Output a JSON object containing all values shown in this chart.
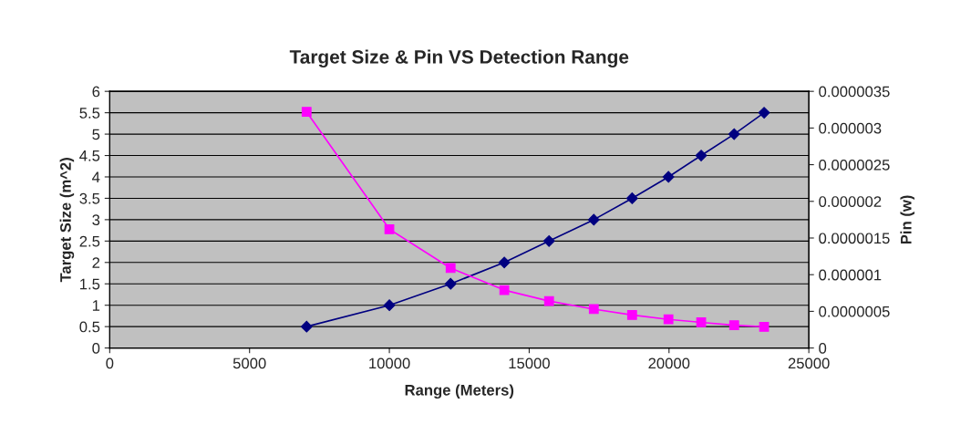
{
  "chart_data": {
    "type": "line",
    "title": "Target Size & Pin VS Detection Range",
    "xlabel": "Range (Meters)",
    "ylabel": "Target Size (m^2)",
    "y2label": "Pin (w)",
    "series": [
      {
        "color": "#000080",
        "marker": "diamond",
        "x": [
          7040,
          10000,
          12190,
          14110,
          15710,
          17310,
          18680,
          19980,
          21150,
          22330,
          23400
        ],
        "values": [
          0.5,
          1,
          1.5,
          2,
          2.5,
          3,
          3.5,
          4,
          4.5,
          5,
          5.5
        ]
      },
      {
        "color": "#ff00ff",
        "marker": "square",
        "axis": "y2",
        "x": [
          7040,
          10000,
          12190,
          14110,
          15710,
          17310,
          18680,
          19980,
          21150,
          22330,
          23400
        ],
        "values": [
          3.22e-06,
          1.62e-06,
          1.09e-06,
          7.9e-07,
          6.4e-07,
          5.3e-07,
          4.5e-07,
          3.9e-07,
          3.5e-07,
          3.1e-07,
          2.9e-07
        ]
      }
    ],
    "xlim": [
      0,
      25000
    ],
    "xticks": [
      0,
      5000,
      10000,
      15000,
      20000,
      25000
    ],
    "ylim": [
      0,
      6
    ],
    "yticks": [
      0,
      0.5,
      1,
      1.5,
      2,
      2.5,
      3,
      3.5,
      4,
      4.5,
      5,
      5.5,
      6
    ],
    "y2lim": [
      0,
      3.5e-06
    ],
    "y2ticks": [
      0,
      {
        "value": 5e-07,
        "label": "0.0000005"
      },
      {
        "value": 1e-06,
        "label": "0.000001"
      },
      {
        "value": 1.5e-06,
        "label": "0.0000015"
      },
      {
        "value": 2e-06,
        "label": "0.000002"
      },
      {
        "value": 2.5e-06,
        "label": "0.0000025"
      },
      {
        "value": 3e-06,
        "label": "0.000003"
      },
      {
        "value": 3.5e-06,
        "label": "0.0000035"
      }
    ],
    "grid": "y",
    "line_style": "solid"
  }
}
